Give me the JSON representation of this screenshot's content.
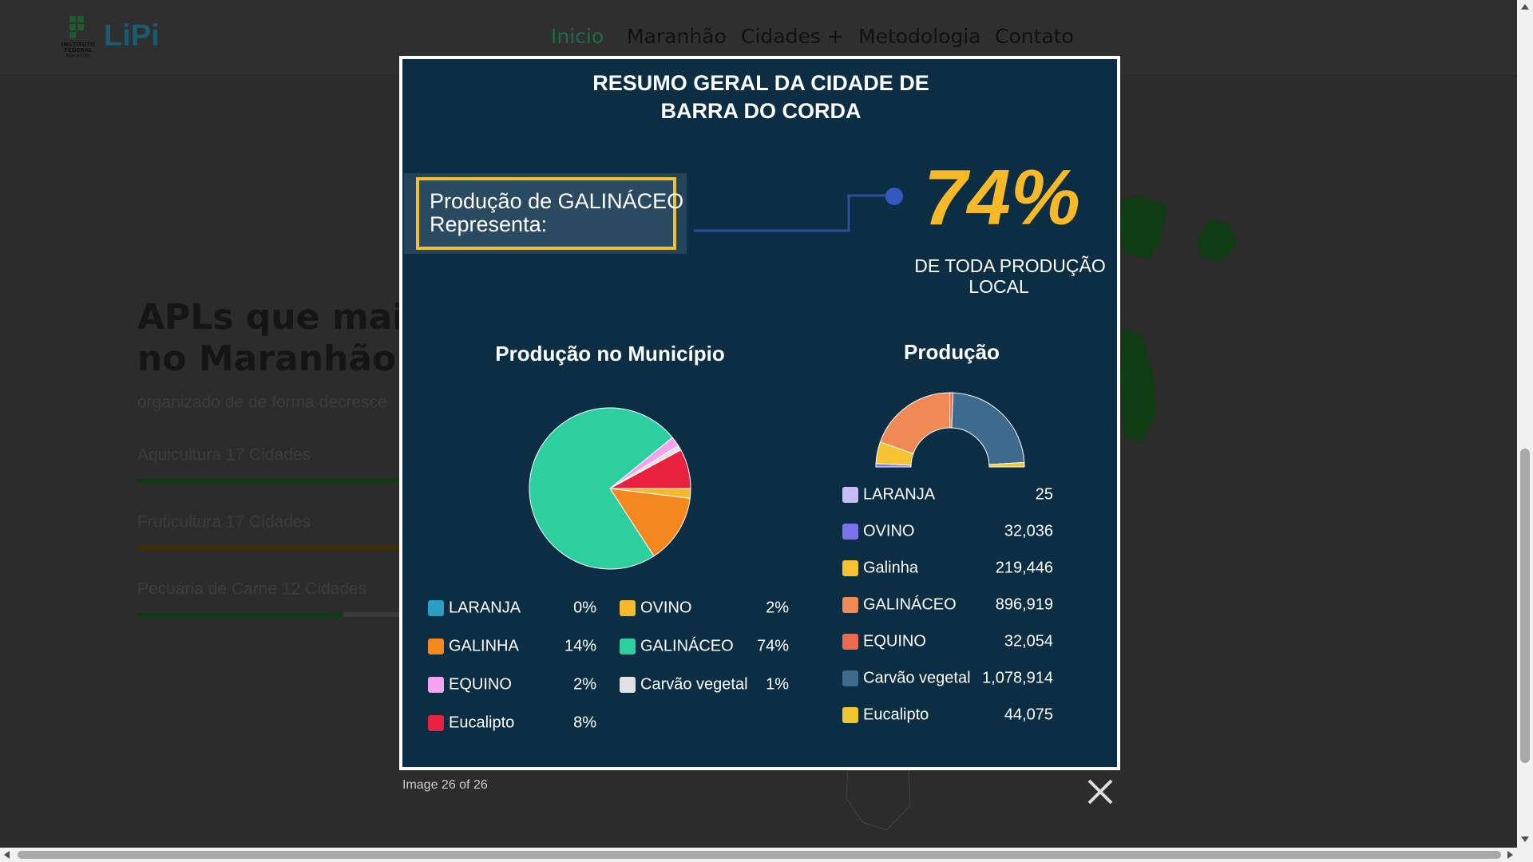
{
  "header": {
    "logo": {
      "emblem_lines": [
        "INSTITUTO",
        "FEDERAL",
        "Maranhão"
      ],
      "text": "LiPi"
    },
    "nav": [
      "Inicio",
      "Maranhão",
      "Cidades +",
      "Metodologia",
      "Contato"
    ]
  },
  "section": {
    "title_lines": [
      "APLs que mais a",
      "no Maranhão"
    ],
    "subtitle": "organizado de de forma decresce",
    "items": [
      "Aquicultura 17 Cidades",
      "Fruticultura 17 Cidades",
      "Pecuária de Carne 12 Cidades"
    ]
  },
  "lightbox": {
    "caption": "Image 26 of 26",
    "infographic": {
      "title_lines": [
        "RESUMO GERAL DA CIDADE DE",
        "BARRA DO CORDA"
      ],
      "box_lines": [
        "Produção de GALINÁCEO",
        "Representa:"
      ],
      "big_value": "74%",
      "big_caption_lines": [
        "DE TODA PRODUÇÃO",
        "LOCAL"
      ],
      "pie_chart": {
        "type": "pie",
        "title": "Produção no Município",
        "categories": [
          "LARANJA",
          "OVINO",
          "GALINHA",
          "GALINÁCEO",
          "EQUINO",
          "Carvão vegetal",
          "Eucalipto"
        ],
        "values": [
          0,
          2,
          14,
          74,
          2,
          1,
          8
        ],
        "value_labels": [
          "0%",
          "2%",
          "14%",
          "74%",
          "2%",
          "1%",
          "8%"
        ],
        "colors": [
          "#2a9fc3",
          "#f5b92e",
          "#f5871f",
          "#2ecf9f",
          "#f4a3ef",
          "#e2e2e2",
          "#e8213f"
        ]
      },
      "donut_chart": {
        "type": "half-donut",
        "title": "Produção",
        "categories": [
          "LARANJA",
          "OVINO",
          "Galinha",
          "GALINÁCEO",
          "EQUINO",
          "Carvão vegetal",
          "Eucalipto"
        ],
        "values": [
          25,
          32036,
          219446,
          896919,
          32054,
          1078914,
          44075
        ],
        "value_labels": [
          "25",
          "32,036",
          "219,446",
          "896,919",
          "32,054",
          "1,078,914",
          "44,075"
        ],
        "colors": [
          "#c9bbf6",
          "#7b73e8",
          "#f6c333",
          "#ef8a55",
          "#ec6a4f",
          "#3e6a8d",
          "#f2c631"
        ]
      }
    }
  }
}
